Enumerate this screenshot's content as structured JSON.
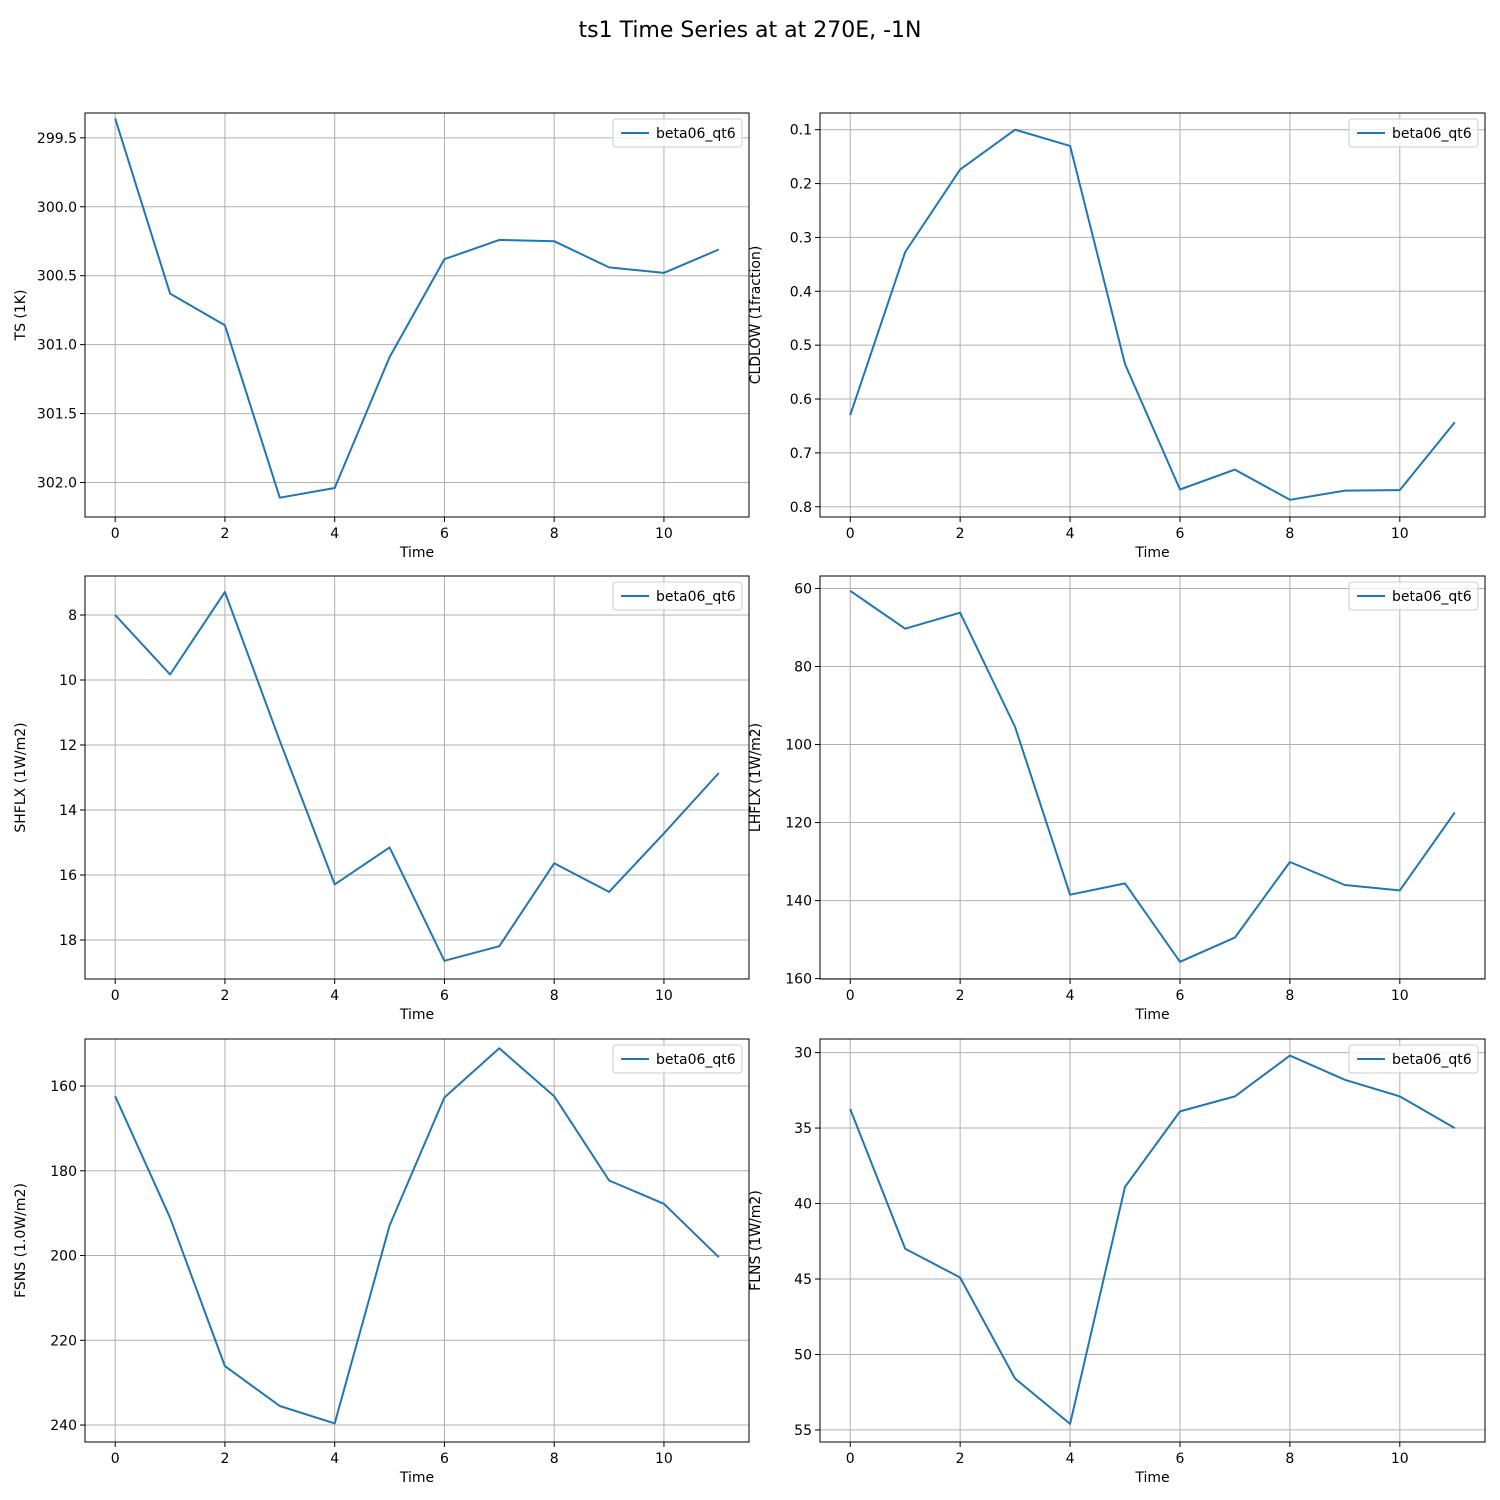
{
  "figure": {
    "title": "ts1 Time Series at at 270E, -1N",
    "series_color": "#1f77b4"
  },
  "chart_data": [
    {
      "type": "line",
      "xlabel": "Time",
      "ylabel": "TS (1K)",
      "xlim": [
        -0.55,
        11.55
      ],
      "xticks": [
        0,
        2,
        4,
        6,
        8,
        10
      ],
      "ylim": [
        302.25,
        299.32
      ],
      "yticks": [
        299.5,
        300.0,
        300.5,
        301.0,
        301.5,
        302.0
      ],
      "ytick_labels": [
        "299.5",
        "300.0",
        "300.5",
        "301.0",
        "301.5",
        "302.0"
      ],
      "y_inverted": true,
      "grid": true,
      "legend_position": "upper right",
      "series": [
        {
          "name": "beta06_qt6",
          "x": [
            0,
            1,
            2,
            3,
            4,
            5,
            6,
            7,
            8,
            9,
            10,
            11
          ],
          "values": [
            299.36,
            300.63,
            300.86,
            302.11,
            302.04,
            301.09,
            300.38,
            300.24,
            300.25,
            300.44,
            300.48,
            300.31
          ]
        }
      ]
    },
    {
      "type": "line",
      "xlabel": "Time",
      "ylabel": "CLDLOW (1fraction)",
      "xlim": [
        -0.55,
        11.55
      ],
      "xticks": [
        0,
        2,
        4,
        6,
        8,
        10
      ],
      "ylim": [
        0.819,
        0.069
      ],
      "yticks": [
        0.1,
        0.2,
        0.3,
        0.4,
        0.5,
        0.6,
        0.7,
        0.8
      ],
      "ytick_labels": [
        "0.1",
        "0.2",
        "0.3",
        "0.4",
        "0.5",
        "0.6",
        "0.7",
        "0.8"
      ],
      "y_inverted": true,
      "grid": true,
      "legend_position": "upper right",
      "series": [
        {
          "name": "beta06_qt6",
          "x": [
            0,
            1,
            2,
            3,
            4,
            5,
            6,
            7,
            8,
            9,
            10,
            11
          ],
          "values": [
            0.63,
            0.327,
            0.174,
            0.1,
            0.13,
            0.535,
            0.768,
            0.731,
            0.787,
            0.77,
            0.769,
            0.643
          ]
        }
      ]
    },
    {
      "type": "line",
      "xlabel": "Time",
      "ylabel": "SHFLX (1W/m2)",
      "xlim": [
        -0.55,
        11.55
      ],
      "xticks": [
        0,
        2,
        4,
        6,
        8,
        10
      ],
      "ylim": [
        19.2,
        6.8
      ],
      "yticks": [
        8,
        10,
        12,
        14,
        16,
        18
      ],
      "ytick_labels": [
        "8",
        "10",
        "12",
        "14",
        "16",
        "18"
      ],
      "y_inverted": true,
      "grid": true,
      "legend_position": "upper right",
      "series": [
        {
          "name": "beta06_qt6",
          "x": [
            0,
            1,
            2,
            3,
            4,
            5,
            6,
            7,
            8,
            9,
            10,
            11
          ],
          "values": [
            8.0,
            9.83,
            7.29,
            11.87,
            16.29,
            15.15,
            18.64,
            18.19,
            15.64,
            16.52,
            14.72,
            12.86
          ]
        }
      ]
    },
    {
      "type": "line",
      "xlabel": "Time",
      "ylabel": "LHFLX (1W/m2)",
      "xlim": [
        -0.55,
        11.55
      ],
      "xticks": [
        0,
        2,
        4,
        6,
        8,
        10
      ],
      "ylim": [
        160.1,
        56.8
      ],
      "yticks": [
        60,
        80,
        100,
        120,
        140,
        160
      ],
      "ytick_labels": [
        "60",
        "80",
        "100",
        "120",
        "140",
        "160"
      ],
      "y_inverted": true,
      "grid": true,
      "legend_position": "upper right",
      "series": [
        {
          "name": "beta06_qt6",
          "x": [
            0,
            1,
            2,
            3,
            4,
            5,
            6,
            7,
            8,
            9,
            10,
            11
          ],
          "values": [
            60.6,
            70.3,
            66.2,
            95.5,
            138.5,
            135.6,
            155.7,
            149.5,
            130.1,
            136.0,
            137.4,
            117.4
          ]
        }
      ]
    },
    {
      "type": "line",
      "xlabel": "Time",
      "ylabel": "FSNS (1.0W/m2)",
      "xlim": [
        -0.55,
        11.55
      ],
      "xticks": [
        0,
        2,
        4,
        6,
        8,
        10
      ],
      "ylim": [
        244.0,
        148.9
      ],
      "yticks": [
        160,
        180,
        200,
        220,
        240
      ],
      "ytick_labels": [
        "160",
        "180",
        "200",
        "220",
        "240"
      ],
      "y_inverted": true,
      "grid": true,
      "legend_position": "upper right",
      "series": [
        {
          "name": "beta06_qt6",
          "x": [
            0,
            1,
            2,
            3,
            4,
            5,
            6,
            7,
            8,
            9,
            10,
            11
          ],
          "values": [
            162.4,
            191.1,
            226.1,
            235.5,
            239.6,
            192.9,
            162.7,
            151.1,
            162.4,
            182.3,
            187.8,
            200.4
          ]
        }
      ]
    },
    {
      "type": "line",
      "xlabel": "Time",
      "ylabel": "FLNS (1W/m2)",
      "xlim": [
        -0.55,
        11.55
      ],
      "xticks": [
        0,
        2,
        4,
        6,
        8,
        10
      ],
      "ylim": [
        55.8,
        29.1
      ],
      "yticks": [
        30,
        35,
        40,
        45,
        50,
        55
      ],
      "ytick_labels": [
        "30",
        "35",
        "40",
        "45",
        "50",
        "55"
      ],
      "y_inverted": true,
      "grid": true,
      "legend_position": "upper right",
      "series": [
        {
          "name": "beta06_qt6",
          "x": [
            0,
            1,
            2,
            3,
            4,
            5,
            6,
            7,
            8,
            9,
            10,
            11
          ],
          "values": [
            33.74,
            43.0,
            44.9,
            51.6,
            54.6,
            38.9,
            33.9,
            32.9,
            30.2,
            31.8,
            32.9,
            35.0
          ]
        }
      ]
    }
  ]
}
